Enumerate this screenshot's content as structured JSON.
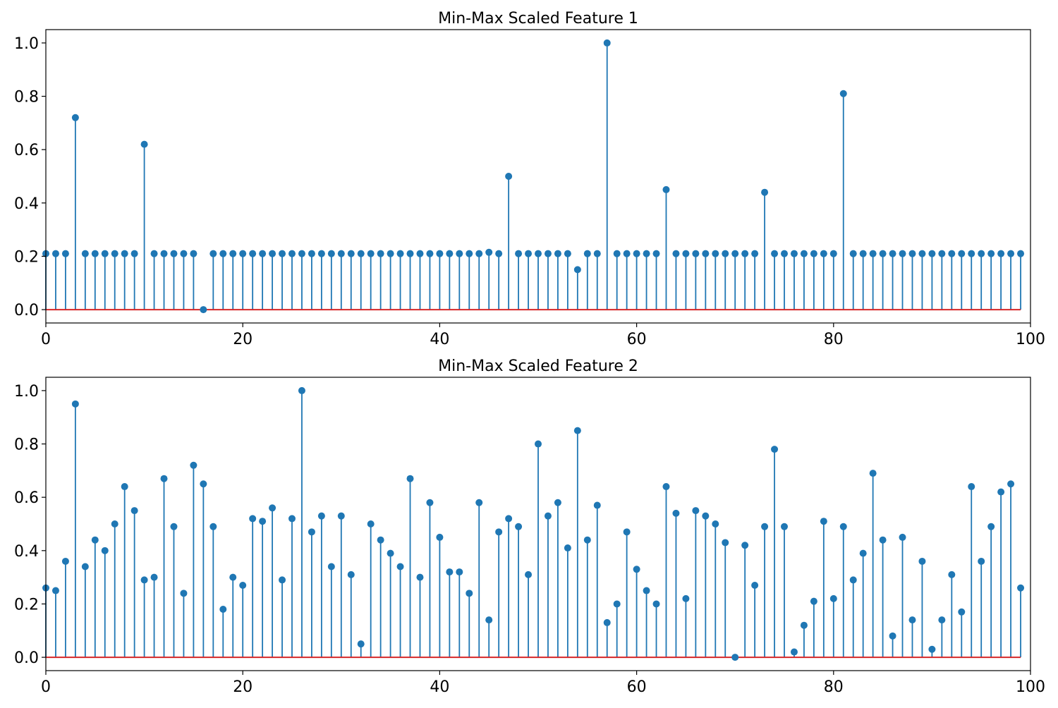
{
  "chart_data": [
    {
      "type": "stem",
      "title": "Min-Max Scaled Feature 1",
      "xlabel": "",
      "ylabel": "",
      "xlim": [
        0,
        100
      ],
      "ylim": [
        -0.05,
        1.05
      ],
      "xticks": [
        "0",
        "20",
        "40",
        "60",
        "80",
        "100"
      ],
      "yticks": [
        "0.0",
        "0.2",
        "0.4",
        "0.6",
        "0.8",
        "1.0"
      ],
      "grid": false,
      "baseline": 0,
      "colors": {
        "stem": "#1f77b4",
        "baseline": "#d62728"
      },
      "x": [
        0,
        1,
        2,
        3,
        4,
        5,
        6,
        7,
        8,
        9,
        10,
        11,
        12,
        13,
        14,
        15,
        16,
        17,
        18,
        19,
        20,
        21,
        22,
        23,
        24,
        25,
        26,
        27,
        28,
        29,
        30,
        31,
        32,
        33,
        34,
        35,
        36,
        37,
        38,
        39,
        40,
        41,
        42,
        43,
        44,
        45,
        46,
        47,
        48,
        49,
        50,
        51,
        52,
        53,
        54,
        55,
        56,
        57,
        58,
        59,
        60,
        61,
        62,
        63,
        64,
        65,
        66,
        67,
        68,
        69,
        70,
        71,
        72,
        73,
        74,
        75,
        76,
        77,
        78,
        79,
        80,
        81,
        82,
        83,
        84,
        85,
        86,
        87,
        88,
        89,
        90,
        91,
        92,
        93,
        94,
        95,
        96,
        97,
        98,
        99
      ],
      "values": [
        0.21,
        0.21,
        0.21,
        0.72,
        0.21,
        0.21,
        0.21,
        0.21,
        0.21,
        0.21,
        0.62,
        0.21,
        0.21,
        0.21,
        0.21,
        0.21,
        0.0,
        0.21,
        0.21,
        0.21,
        0.21,
        0.21,
        0.21,
        0.21,
        0.21,
        0.21,
        0.21,
        0.21,
        0.21,
        0.21,
        0.21,
        0.21,
        0.21,
        0.21,
        0.21,
        0.21,
        0.21,
        0.21,
        0.21,
        0.21,
        0.21,
        0.21,
        0.21,
        0.21,
        0.21,
        0.215,
        0.21,
        0.5,
        0.21,
        0.21,
        0.21,
        0.21,
        0.21,
        0.21,
        0.15,
        0.21,
        0.21,
        1.0,
        0.21,
        0.21,
        0.21,
        0.21,
        0.21,
        0.45,
        0.21,
        0.21,
        0.21,
        0.21,
        0.21,
        0.21,
        0.21,
        0.21,
        0.21,
        0.44,
        0.21,
        0.21,
        0.21,
        0.21,
        0.21,
        0.21,
        0.21,
        0.81,
        0.21,
        0.21,
        0.21,
        0.21,
        0.21,
        0.21,
        0.21,
        0.21,
        0.21,
        0.21,
        0.21,
        0.21,
        0.21,
        0.21,
        0.21,
        0.21,
        0.21,
        0.21
      ]
    },
    {
      "type": "stem",
      "title": "Min-Max Scaled Feature 2",
      "xlabel": "",
      "ylabel": "",
      "xlim": [
        0,
        100
      ],
      "ylim": [
        -0.05,
        1.05
      ],
      "xticks": [
        "0",
        "20",
        "40",
        "60",
        "80",
        "100"
      ],
      "yticks": [
        "0.0",
        "0.2",
        "0.4",
        "0.6",
        "0.8",
        "1.0"
      ],
      "grid": false,
      "baseline": 0,
      "colors": {
        "stem": "#1f77b4",
        "baseline": "#d62728"
      },
      "x": [
        0,
        1,
        2,
        3,
        4,
        5,
        6,
        7,
        8,
        9,
        10,
        11,
        12,
        13,
        14,
        15,
        16,
        17,
        18,
        19,
        20,
        21,
        22,
        23,
        24,
        25,
        26,
        27,
        28,
        29,
        30,
        31,
        32,
        33,
        34,
        35,
        36,
        37,
        38,
        39,
        40,
        41,
        42,
        43,
        44,
        45,
        46,
        47,
        48,
        49,
        50,
        51,
        52,
        53,
        54,
        55,
        56,
        57,
        58,
        59,
        60,
        61,
        62,
        63,
        64,
        65,
        66,
        67,
        68,
        69,
        70,
        71,
        72,
        73,
        74,
        75,
        76,
        77,
        78,
        79,
        80,
        81,
        82,
        83,
        84,
        85,
        86,
        87,
        88,
        89,
        90,
        91,
        92,
        93,
        94,
        95,
        96,
        97,
        98,
        99
      ],
      "values": [
        0.26,
        0.25,
        0.36,
        0.95,
        0.34,
        0.44,
        0.4,
        0.5,
        0.64,
        0.55,
        0.29,
        0.3,
        0.67,
        0.49,
        0.24,
        0.72,
        0.65,
        0.49,
        0.18,
        0.3,
        0.27,
        0.52,
        0.51,
        0.56,
        0.29,
        0.52,
        1.0,
        0.47,
        0.53,
        0.34,
        0.53,
        0.31,
        0.05,
        0.5,
        0.44,
        0.39,
        0.34,
        0.67,
        0.3,
        0.58,
        0.45,
        0.32,
        0.32,
        0.24,
        0.58,
        0.14,
        0.47,
        0.52,
        0.49,
        0.31,
        0.8,
        0.53,
        0.58,
        0.41,
        0.85,
        0.44,
        0.57,
        0.13,
        0.2,
        0.47,
        0.33,
        0.25,
        0.2,
        0.64,
        0.54,
        0.22,
        0.55,
        0.53,
        0.5,
        0.43,
        0.0,
        0.42,
        0.27,
        0.49,
        0.78,
        0.49,
        0.02,
        0.12,
        0.21,
        0.51,
        0.22,
        0.49,
        0.29,
        0.39,
        0.69,
        0.44,
        0.08,
        0.45,
        0.14,
        0.36,
        0.03,
        0.14,
        0.31,
        0.17,
        0.64,
        0.36,
        0.49,
        0.62,
        0.65,
        0.26
      ]
    }
  ]
}
